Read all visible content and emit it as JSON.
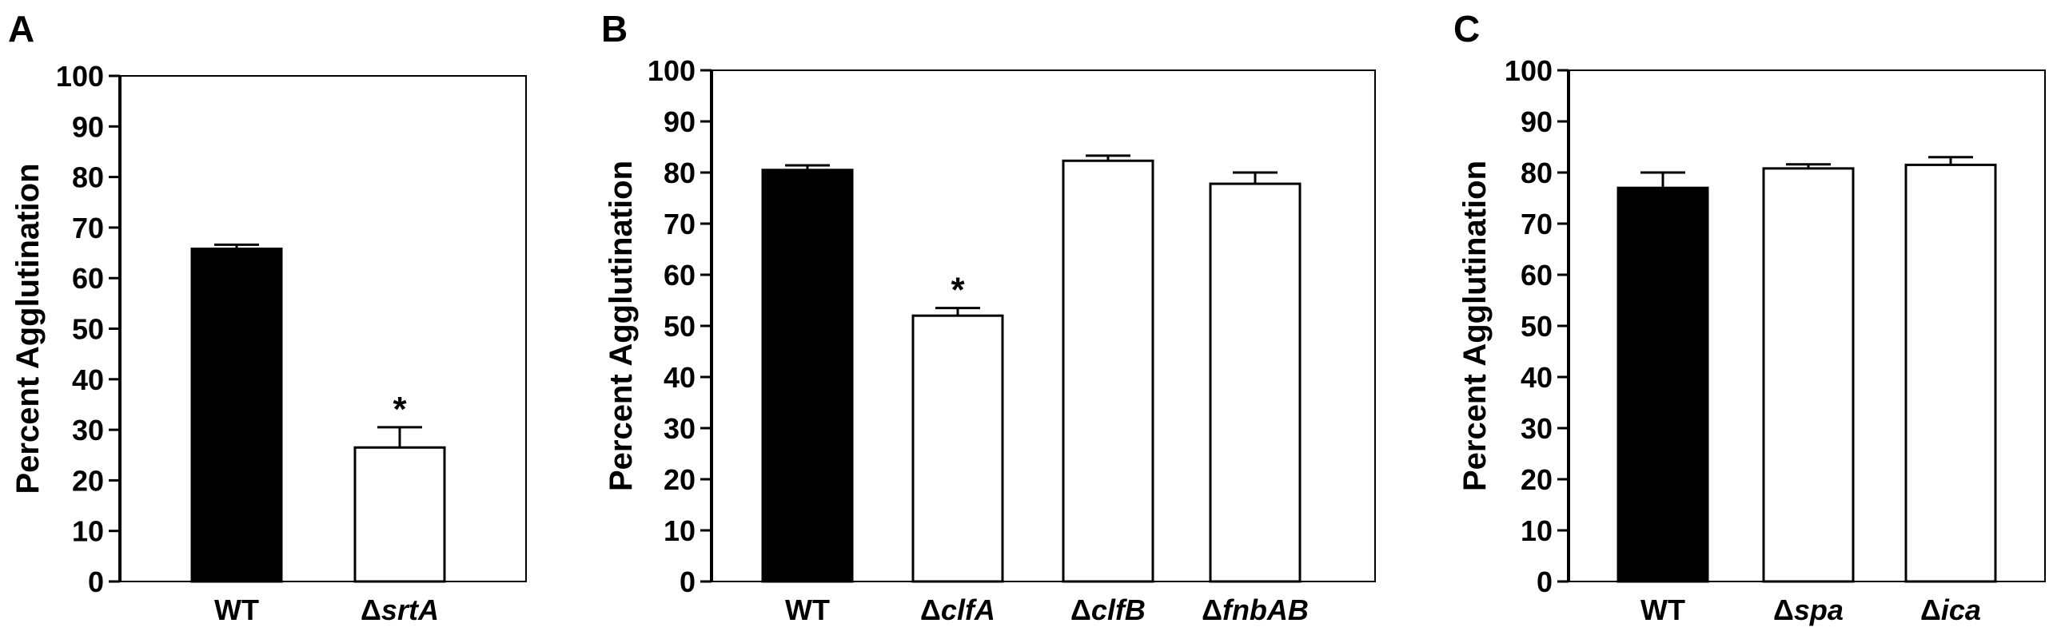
{
  "chart_data": [
    {
      "panel": "A",
      "type": "bar",
      "ylabel": "Percent Agglutination",
      "ylim": [
        0,
        100
      ],
      "yticks": [
        0,
        10,
        20,
        30,
        40,
        50,
        60,
        70,
        80,
        90,
        100
      ],
      "categories": [
        {
          "prefix": "",
          "name": "WT"
        },
        {
          "prefix": "Δ",
          "name": "srtA"
        }
      ],
      "values": [
        65.8,
        26.5
      ],
      "errors": [
        0.8,
        4.0
      ],
      "fills": [
        "#000000",
        "#ffffff"
      ],
      "markers": [
        "",
        "*"
      ]
    },
    {
      "panel": "B",
      "type": "bar",
      "ylabel": "Percent Agglutination",
      "ylim": [
        0,
        100
      ],
      "yticks": [
        0,
        10,
        20,
        30,
        40,
        50,
        60,
        70,
        80,
        90,
        100
      ],
      "categories": [
        {
          "prefix": "",
          "name": "WT"
        },
        {
          "prefix": "Δ",
          "name": "clfA"
        },
        {
          "prefix": "Δ",
          "name": "clfB"
        },
        {
          "prefix": "Δ",
          "name": "fnbAB"
        }
      ],
      "values": [
        80.5,
        52.0,
        82.3,
        77.8
      ],
      "errors": [
        0.9,
        1.5,
        1.0,
        2.2
      ],
      "fills": [
        "#000000",
        "#ffffff",
        "#ffffff",
        "#ffffff"
      ],
      "markers": [
        "",
        "*",
        "",
        ""
      ]
    },
    {
      "panel": "C",
      "type": "bar",
      "ylabel": "Percent Agglutination",
      "ylim": [
        0,
        100
      ],
      "yticks": [
        0,
        10,
        20,
        30,
        40,
        50,
        60,
        70,
        80,
        90,
        100
      ],
      "categories": [
        {
          "prefix": "",
          "name": "WT"
        },
        {
          "prefix": "Δ",
          "name": "spa"
        },
        {
          "prefix": "Δ",
          "name": "ica"
        }
      ],
      "values": [
        77.0,
        80.8,
        81.5
      ],
      "errors": [
        3.0,
        0.8,
        1.5
      ],
      "fills": [
        "#000000",
        "#ffffff",
        "#ffffff"
      ],
      "markers": [
        "",
        "",
        ""
      ]
    }
  ]
}
